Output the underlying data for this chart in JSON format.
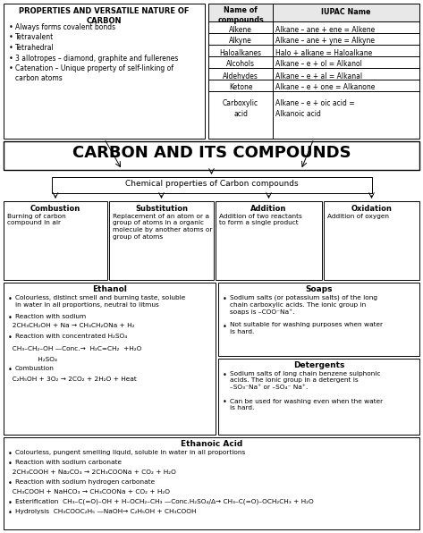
{
  "title": "CARBON AND ITS COMPOUNDS",
  "bg_color": "#ffffff",
  "top_left_title": "PROPERTIES AND VERSATILE NATURE OF\nCARBON",
  "top_left_bullets": [
    "Always forms covalent bonds",
    "Tetravalent",
    "Tetrahedral",
    "3 allotropes – diamond, graphite and fullerenes",
    "Catenation – Unique property of self-linking of\ncarbon atoms"
  ],
  "table_header": [
    "Name of\ncompounds",
    "IUPAC Name"
  ],
  "table_rows": [
    [
      "Alkene",
      "Alkane – ane + ene = Alkene"
    ],
    [
      "Alkyne",
      "Alkane – ane + yne = Alkyne"
    ],
    [
      "Haloalkanes",
      "Halo + alkane = Haloalkane"
    ],
    [
      "Alcohols",
      "Alkane – e + ol = Alkanol"
    ],
    [
      "Aldehydes",
      "Alkane – e + al = Alkanal"
    ],
    [
      "Ketone",
      "Alkane – e + one = Alkanone"
    ],
    [
      "Carboxylic\nacid",
      "Alkane – e + oic acid =\nAlkanoic acid"
    ]
  ],
  "chem_props_title": "Chemical properties of Carbon compounds",
  "reaction_boxes": [
    {
      "title": "Combustion",
      "body": "Burning of carbon\ncompound in air"
    },
    {
      "title": "Substitution",
      "body": "Replacement of an atom or a\ngroup of atoms in a organic\nmolecule by another atoms or\ngroup of atoms"
    },
    {
      "title": "Addition",
      "body": "Addition of two reactants\nto form a single product"
    },
    {
      "title": "Oxidation",
      "body": "Addition of oxygen"
    }
  ],
  "ethanol_title": "Ethanol",
  "soaps_title": "Soaps",
  "soaps_bullets": [
    "Sodium salts (or potassium salts) of the long\nchain carboxylic acids. The ionic group in\nsoaps is –COO⁻Na⁺.",
    "Not suitable for washing purposes when water\nis hard."
  ],
  "detergents_title": "Detergents",
  "detergents_bullets": [
    "Sodium salts of long chain benzene sulphonic\nacids. The ionic group in a detergent is\n–SO₃⁻Na⁺ or –SO₄⁻ Na⁺.",
    "Can be used for washing even when the water\nis hard."
  ],
  "ethanoic_title": "Ethanoic Acid"
}
